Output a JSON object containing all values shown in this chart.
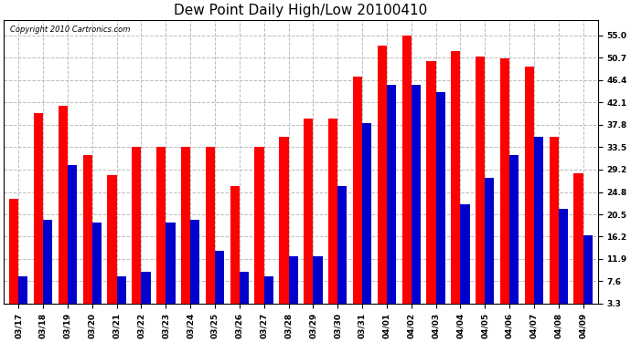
{
  "title": "Dew Point Daily High/Low 20100410",
  "copyright": "Copyright 2010 Cartronics.com",
  "categories": [
    "03/17",
    "03/18",
    "03/19",
    "03/20",
    "03/21",
    "03/22",
    "03/23",
    "03/24",
    "03/25",
    "03/26",
    "03/27",
    "03/28",
    "03/29",
    "03/30",
    "03/31",
    "04/01",
    "04/02",
    "04/03",
    "04/04",
    "04/05",
    "04/06",
    "04/07",
    "04/08",
    "04/09"
  ],
  "high_values": [
    23.5,
    40.0,
    41.5,
    32.0,
    28.0,
    33.5,
    33.5,
    33.5,
    33.5,
    26.0,
    33.5,
    35.5,
    39.0,
    39.0,
    47.0,
    53.0,
    55.0,
    50.0,
    52.0,
    51.0,
    50.5,
    49.0,
    35.5,
    28.5
  ],
  "low_values": [
    8.5,
    19.5,
    30.0,
    19.0,
    8.5,
    9.5,
    19.0,
    19.5,
    13.5,
    9.5,
    8.5,
    12.5,
    12.5,
    26.0,
    38.0,
    45.5,
    45.5,
    44.0,
    22.5,
    27.5,
    32.0,
    35.5,
    21.5,
    16.5
  ],
  "bar_width": 0.38,
  "high_color": "#ff0000",
  "low_color": "#0000cc",
  "background_color": "#ffffff",
  "plot_bg_color": "#ffffff",
  "grid_color": "#bbbbbb",
  "yticks": [
    3.3,
    7.6,
    11.9,
    16.2,
    20.5,
    24.8,
    29.2,
    33.5,
    37.8,
    42.1,
    46.4,
    50.7,
    55.0
  ],
  "ylim_min": 3.3,
  "ylim_max": 58.0,
  "title_fontsize": 11,
  "tick_fontsize": 6.5,
  "copyright_fontsize": 6.0
}
